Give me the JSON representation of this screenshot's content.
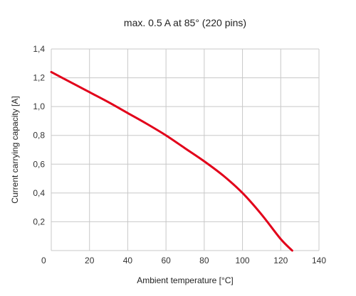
{
  "chart_data": {
    "type": "line",
    "title": "max. 0.5 A  at 85° (220 pins)",
    "xlabel": "Ambient temperature [°C]",
    "ylabel": "Current carrying capacity [A]",
    "xlim": [
      0,
      140
    ],
    "ylim": [
      0,
      1.4
    ],
    "grid": true,
    "x_ticks": [
      0,
      20,
      40,
      60,
      80,
      100,
      120,
      140
    ],
    "x_tick_labels": [
      "0",
      "20",
      "40",
      "60",
      "80",
      "100",
      "120",
      "140"
    ],
    "y_ticks": [
      0.2,
      0.4,
      0.6,
      0.8,
      1.0,
      1.2,
      1.4
    ],
    "y_tick_labels": [
      "0,2",
      "0,4",
      "0,6",
      "0,8",
      "1,0",
      "1,2",
      "1,4"
    ],
    "series": [
      {
        "color": "#e2001a",
        "x": [
          0,
          10,
          20,
          30,
          40,
          50,
          60,
          70,
          80,
          90,
          100,
          110,
          120,
          126
        ],
        "y": [
          1.24,
          1.17,
          1.1,
          1.03,
          0.955,
          0.88,
          0.8,
          0.71,
          0.62,
          0.52,
          0.4,
          0.25,
          0.08,
          0.0
        ]
      }
    ]
  }
}
